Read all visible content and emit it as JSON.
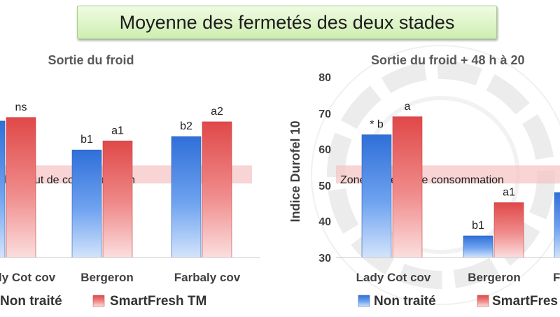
{
  "page_title": "Moyenne des fermetés des deux stades",
  "colors": {
    "blue": "#3d7ee6",
    "red": "#e85a5a",
    "zone": "#f6c6c6"
  },
  "chart_data": [
    {
      "type": "bar",
      "title": "Sortie du froid",
      "ylabel": "",
      "ylim": [
        30,
        80
      ],
      "categories": [
        "Lady Cot cov",
        "Bergeron",
        "Farbaly cov"
      ],
      "category_labels": [
        "ly Cot cov",
        "Bergeron",
        "Farbaly cov"
      ],
      "series": [
        {
          "name": "Non traité",
          "values": [
            67.8,
            59.8,
            63.5
          ],
          "labels": [
            "",
            "b1",
            "b2"
          ]
        },
        {
          "name": "SmartFresh TM",
          "values": [
            68.8,
            62.3,
            67.6
          ],
          "labels": [
            "ns",
            "a1",
            "a2"
          ]
        }
      ],
      "zone": {
        "label": "de début de consommation",
        "range": [
          50.5,
          55.5
        ]
      },
      "legend": "bottom"
    },
    {
      "type": "bar",
      "title": "Sortie du froid + 48 h à 20",
      "ylabel": "Indice Durofel 10",
      "ylim": [
        30,
        80
      ],
      "yticks": [
        "30",
        "40",
        "50",
        "60",
        "70",
        "80"
      ],
      "categories": [
        "Lady Cot cov",
        "Bergeron",
        "Farbaly cov"
      ],
      "category_labels": [
        "Lady Cot cov",
        "Bergeron",
        "F"
      ],
      "series": [
        {
          "name": "Non traité",
          "values": [
            64,
            36,
            48
          ],
          "labels": [
            "* b",
            "b1",
            ""
          ]
        },
        {
          "name": "SmartFres",
          "values": [
            69,
            45.2,
            null
          ],
          "labels": [
            "a",
            "a1",
            ""
          ]
        }
      ],
      "zone": {
        "label": "Zone de début de consommation",
        "range": [
          50.5,
          55.5
        ]
      },
      "legend": "bottom"
    }
  ]
}
